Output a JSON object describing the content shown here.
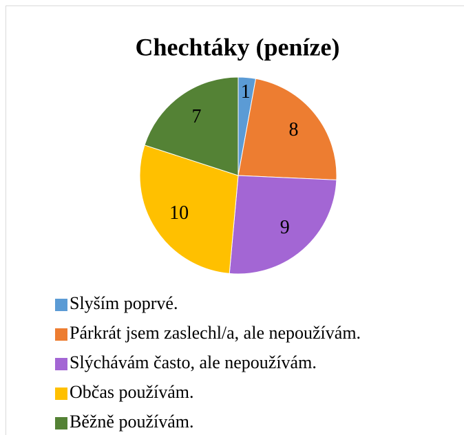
{
  "chart_data": {
    "type": "pie",
    "title": "Chechtáky (peníze)",
    "categories": [
      "Slyším poprvé.",
      "Párkrát jsem zaslechl/a, ale nepoužívám.",
      "Slýchávám často, ale nepoužívám.",
      "Občas používám.",
      "Běžně používám."
    ],
    "values": [
      1,
      8,
      9,
      10,
      7
    ],
    "colors": [
      "#5b9bd5",
      "#ed7d31",
      "#a366d4",
      "#ffc000",
      "#548235"
    ],
    "legend": "bottom"
  }
}
